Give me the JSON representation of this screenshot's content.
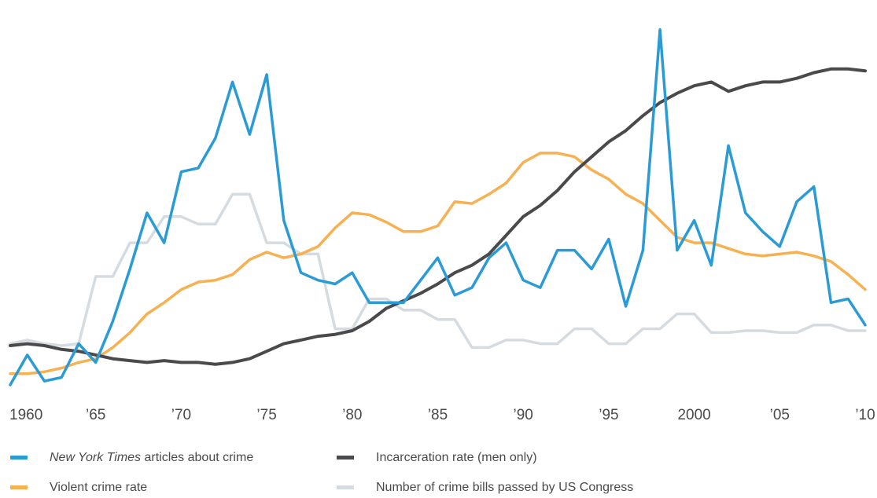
{
  "chart_data": {
    "type": "line",
    "xlim": [
      1960,
      2010
    ],
    "ylim": [
      0,
      100
    ],
    "x_ticks": [
      {
        "value": 1960,
        "label": "1960"
      },
      {
        "value": 1965,
        "label": "’65"
      },
      {
        "value": 1970,
        "label": "’70"
      },
      {
        "value": 1975,
        "label": "’75"
      },
      {
        "value": 1980,
        "label": "’80"
      },
      {
        "value": 1985,
        "label": "’85"
      },
      {
        "value": 1990,
        "label": "’90"
      },
      {
        "value": 1995,
        "label": "’95"
      },
      {
        "value": 2000,
        "label": "2000"
      },
      {
        "value": 2005,
        "label": "’05"
      },
      {
        "value": 2010,
        "label": "’10"
      }
    ],
    "grid": false,
    "legend_position": "bottom",
    "series": [
      {
        "name": "New York Times articles about crime",
        "name_italic": "New York Times",
        "name_rest": " articles about crime",
        "color": "#2b9bd6",
        "x": [
          1960,
          1961,
          1962,
          1963,
          1964,
          1965,
          1966,
          1967,
          1968,
          1969,
          1970,
          1971,
          1972,
          1973,
          1974,
          1975,
          1976,
          1977,
          1978,
          1979,
          1980,
          1981,
          1982,
          1983,
          1984,
          1985,
          1986,
          1987,
          1988,
          1989,
          1990,
          1991,
          1992,
          1993,
          1994,
          1995,
          1996,
          1997,
          1998,
          1999,
          2000,
          2001,
          2002,
          2003,
          2004,
          2005,
          2006,
          2007,
          2008,
          2009,
          2010
        ],
        "values": [
          0,
          8,
          1,
          2,
          11,
          6,
          17,
          31,
          46,
          38,
          57,
          58,
          66,
          81,
          67,
          83,
          44,
          30,
          28,
          27,
          30,
          22,
          22,
          22,
          28,
          34,
          24,
          26,
          34,
          38,
          28,
          26,
          36,
          36,
          31,
          39,
          21,
          36,
          95,
          36,
          44,
          32,
          64,
          46,
          41,
          37,
          49,
          53,
          22,
          23,
          16
        ]
      },
      {
        "name": "Violent crime rate",
        "color": "#f7b153",
        "x": [
          1960,
          1961,
          1962,
          1963,
          1964,
          1965,
          1966,
          1967,
          1968,
          1969,
          1970,
          1971,
          1972,
          1973,
          1974,
          1975,
          1976,
          1977,
          1978,
          1979,
          1980,
          1981,
          1982,
          1983,
          1984,
          1985,
          1986,
          1987,
          1988,
          1989,
          1990,
          1991,
          1992,
          1993,
          1994,
          1995,
          1996,
          1997,
          1998,
          1999,
          2000,
          2001,
          2002,
          2003,
          2004,
          2005,
          2006,
          2007,
          2008,
          2009,
          2010
        ],
        "values": [
          3,
          3,
          3.5,
          4.5,
          6,
          7,
          10,
          14,
          19,
          22,
          25.5,
          27.5,
          28,
          29.5,
          33.5,
          35.5,
          34,
          35,
          37,
          42,
          46,
          45.5,
          43.5,
          41,
          41,
          42.5,
          49,
          48.5,
          51,
          54,
          59.5,
          62,
          62,
          61,
          57.5,
          55,
          51,
          48.5,
          44,
          39.5,
          38,
          38,
          36.5,
          35,
          34.5,
          35,
          35.5,
          34.5,
          33,
          29.5,
          25.5
        ]
      },
      {
        "name": "Incarceration rate (men only)",
        "color": "#4a4a4c",
        "x": [
          1960,
          1961,
          1962,
          1963,
          1964,
          1965,
          1966,
          1967,
          1968,
          1969,
          1970,
          1971,
          1972,
          1973,
          1974,
          1975,
          1976,
          1977,
          1978,
          1979,
          1980,
          1981,
          1982,
          1983,
          1984,
          1985,
          1986,
          1987,
          1988,
          1989,
          1990,
          1991,
          1992,
          1993,
          1994,
          1995,
          1996,
          1997,
          1998,
          1999,
          2000,
          2001,
          2002,
          2003,
          2004,
          2005,
          2006,
          2007,
          2008,
          2009,
          2010
        ],
        "values": [
          10.5,
          11,
          10.5,
          9.5,
          9,
          8,
          7,
          6.5,
          6,
          6.5,
          6,
          6,
          5.5,
          6,
          7,
          9,
          11,
          12,
          13,
          13.5,
          14.5,
          17,
          20.5,
          22.5,
          24.5,
          27,
          30,
          32,
          35,
          40,
          45,
          48,
          52,
          57,
          61,
          65,
          68,
          72,
          75.5,
          78,
          80,
          81,
          78.5,
          80,
          81,
          81,
          82,
          83.5,
          84.5,
          84.5,
          84
        ]
      },
      {
        "name": "Number of crime bills passed by US Congress",
        "color": "#d5dce1",
        "x": [
          1960,
          1961,
          1962,
          1963,
          1964,
          1965,
          1966,
          1967,
          1968,
          1969,
          1970,
          1971,
          1972,
          1973,
          1974,
          1975,
          1976,
          1977,
          1978,
          1979,
          1980,
          1981,
          1982,
          1983,
          1984,
          1985,
          1986,
          1987,
          1988,
          1989,
          1990,
          1991,
          1992,
          1993,
          1994,
          1995,
          1996,
          1997,
          1998,
          1999,
          2000,
          2001,
          2002,
          2003,
          2004,
          2005,
          2006,
          2007,
          2008,
          2009,
          2010
        ],
        "values": [
          11,
          12,
          11,
          10.5,
          11,
          29,
          29,
          38,
          38,
          45,
          45,
          43,
          43,
          51,
          51,
          38,
          38,
          35,
          35,
          15,
          15,
          23,
          23,
          20,
          20,
          17.5,
          17.5,
          10,
          10,
          12,
          12,
          11,
          11,
          15,
          15,
          11,
          11,
          15,
          15,
          19,
          19,
          14,
          14,
          14.5,
          14.5,
          14,
          14,
          16,
          16,
          14.5,
          14.5
        ]
      }
    ]
  }
}
